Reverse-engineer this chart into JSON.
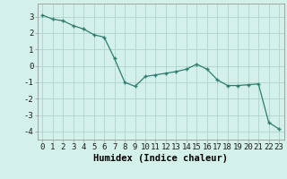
{
  "x": [
    0,
    1,
    2,
    3,
    4,
    5,
    6,
    7,
    8,
    9,
    10,
    11,
    12,
    13,
    14,
    15,
    16,
    17,
    18,
    19,
    20,
    21,
    22,
    23
  ],
  "y": [
    3.1,
    2.85,
    2.75,
    2.45,
    2.25,
    1.9,
    1.75,
    0.45,
    -1.0,
    -1.25,
    -0.65,
    -0.55,
    -0.45,
    -0.35,
    -0.2,
    0.1,
    -0.2,
    -0.85,
    -1.2,
    -1.2,
    -1.15,
    -1.1,
    -3.45,
    -3.85
  ],
  "line_color": "#2e7d6e",
  "marker_color": "#2e7d6e",
  "bg_color": "#d4f0eb",
  "grid_color": "#aed4cc",
  "xlabel": "Humidex (Indice chaleur)",
  "ylim": [
    -4.5,
    3.8
  ],
  "xlim": [
    -0.5,
    23.5
  ],
  "yticks": [
    -4,
    -3,
    -2,
    -1,
    0,
    1,
    2,
    3
  ],
  "xticks": [
    0,
    1,
    2,
    3,
    4,
    5,
    6,
    7,
    8,
    9,
    10,
    11,
    12,
    13,
    14,
    15,
    16,
    17,
    18,
    19,
    20,
    21,
    22,
    23
  ],
  "label_fontsize": 7.5,
  "tick_fontsize": 6.5
}
